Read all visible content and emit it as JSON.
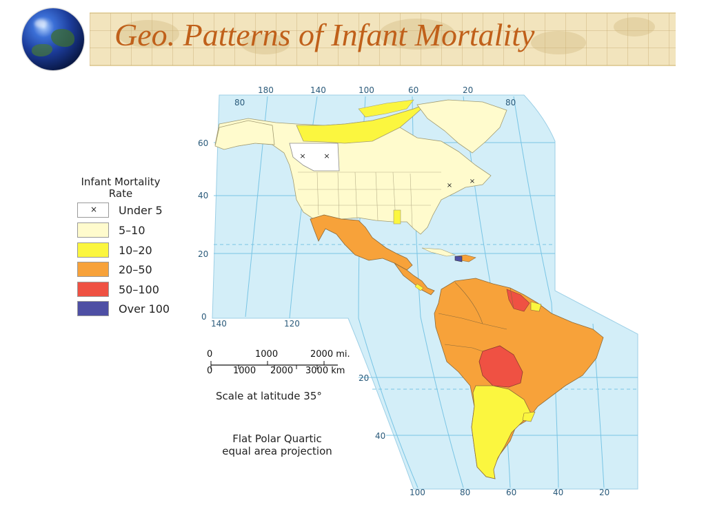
{
  "slide": {
    "title": "Geo. Patterns of Infant Mortality"
  },
  "legend": {
    "title_line1": "Infant Mortality",
    "title_line2": "Rate",
    "marker_glyph": "×",
    "items": [
      {
        "label": "Under 5",
        "color": "#ffffff",
        "marker": true
      },
      {
        "label": "5–10",
        "color": "#fffbcd"
      },
      {
        "label": "10–20",
        "color": "#fbf63f"
      },
      {
        "label": "20–50",
        "color": "#f7a23a"
      },
      {
        "label": "50–100",
        "color": "#ef5143"
      },
      {
        "label": "Over 100",
        "color": "#4e4fa4"
      }
    ]
  },
  "map": {
    "ocean_color": "#d3eef8",
    "graticule_color": "#78c4e4",
    "top_longitudes": [
      "180",
      "140",
      "100",
      "60",
      "20"
    ],
    "bottom_longitudes": [
      "100",
      "80",
      "60",
      "40",
      "20"
    ],
    "inner_longitudes": [
      "140",
      "120"
    ],
    "latitudes_left": [
      "80",
      "60",
      "40",
      "20",
      "0"
    ],
    "latitudes_right": [
      "80",
      "20",
      "40"
    ],
    "projection_note_line1": "Flat Polar Quartic",
    "projection_note_line2": "equal area projection"
  },
  "scale_bar": {
    "miles": [
      "0",
      "1000",
      "2000 mi."
    ],
    "km": [
      "0",
      "1000",
      "2000",
      "3000 km"
    ],
    "caption": "Scale at latitude 35°"
  }
}
